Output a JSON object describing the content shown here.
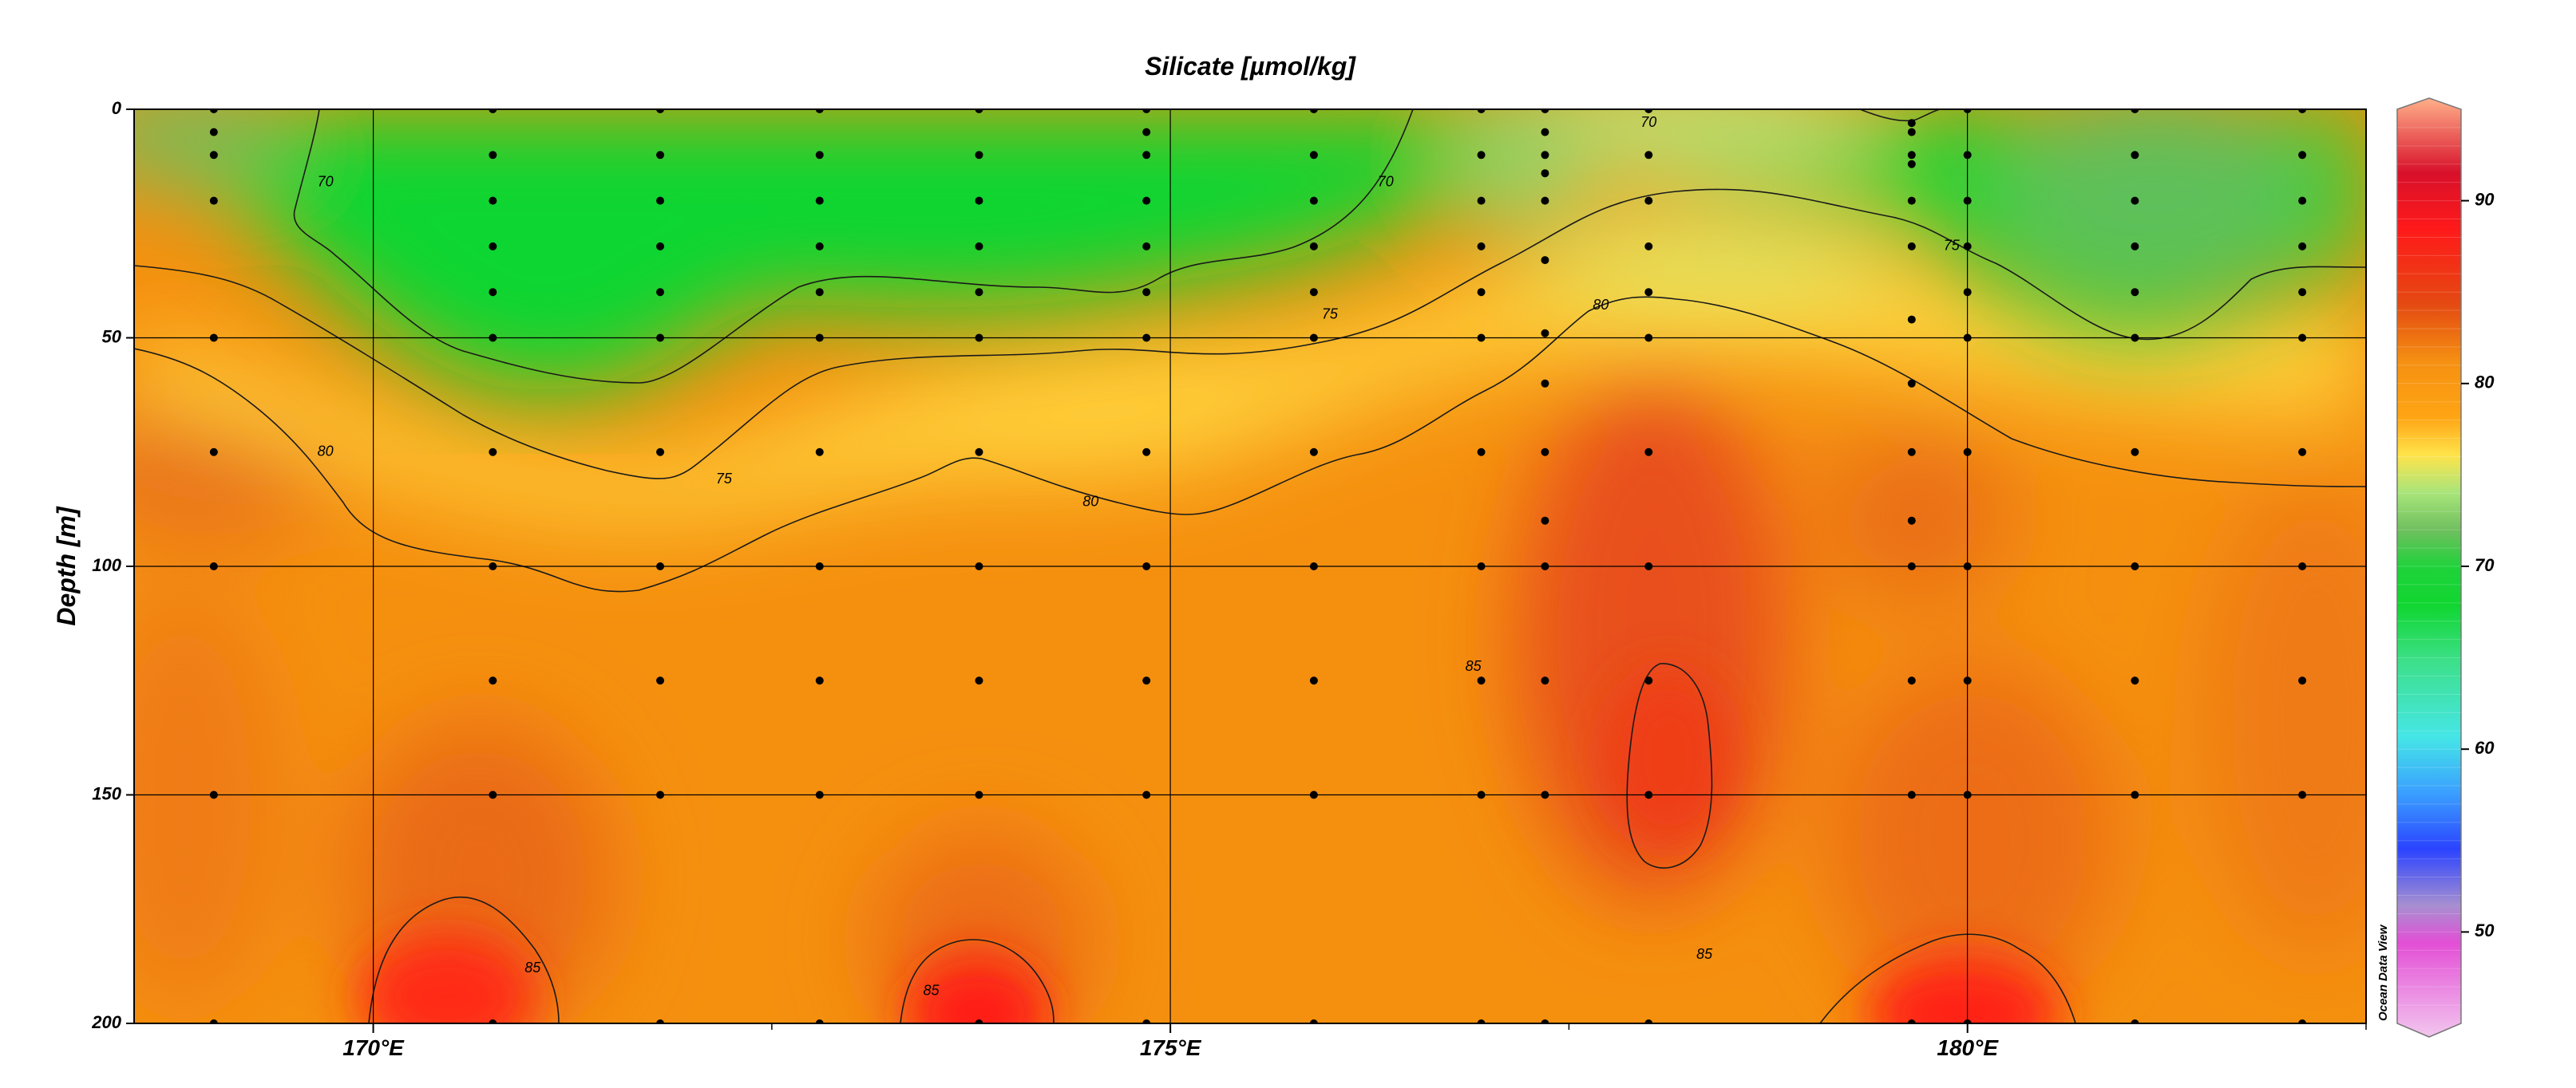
{
  "chart_data": {
    "type": "heatmap",
    "title": "Silicate [µmol/kg]",
    "xlabel": "",
    "ylabel": "Depth [m]",
    "x_ticks": [
      {
        "value": 170,
        "label": "170°E"
      },
      {
        "value": 175,
        "label": "175°E"
      },
      {
        "value": 180,
        "label": "180°E"
      }
    ],
    "y_ticks": [
      {
        "value": 0,
        "label": "0"
      },
      {
        "value": 50,
        "label": "50"
      },
      {
        "value": 100,
        "label": "100"
      },
      {
        "value": 150,
        "label": "150"
      },
      {
        "value": 200,
        "label": "200"
      }
    ],
    "xlim": [
      168.5,
      182.5
    ],
    "ylim": [
      0,
      200
    ],
    "y_inverted": true,
    "grid": true,
    "colorbar": {
      "range": [
        45,
        95
      ],
      "ticks": [
        {
          "value": 50,
          "label": "50"
        },
        {
          "value": 60,
          "label": "60"
        },
        {
          "value": 70,
          "label": "70"
        },
        {
          "value": 80,
          "label": "80"
        },
        {
          "value": 90,
          "label": "90"
        }
      ],
      "stops": [
        {
          "value": 45,
          "color": "#f2c6ee"
        },
        {
          "value": 50,
          "color": "#e34fd6"
        },
        {
          "value": 52,
          "color": "#a78fd0"
        },
        {
          "value": 55,
          "color": "#2b44ff"
        },
        {
          "value": 58,
          "color": "#3aa0ff"
        },
        {
          "value": 61,
          "color": "#45e6e6"
        },
        {
          "value": 65,
          "color": "#3de08a"
        },
        {
          "value": 68,
          "color": "#10d630"
        },
        {
          "value": 70,
          "color": "#1fd23a"
        },
        {
          "value": 72,
          "color": "#6fbf5f"
        },
        {
          "value": 74,
          "color": "#a9e57a"
        },
        {
          "value": 76,
          "color": "#ffe34a"
        },
        {
          "value": 78,
          "color": "#ffa514"
        },
        {
          "value": 81,
          "color": "#f59012"
        },
        {
          "value": 84,
          "color": "#e44a12"
        },
        {
          "value": 88,
          "color": "#ff1a1a"
        },
        {
          "value": 91,
          "color": "#d8102a"
        },
        {
          "value": 95,
          "color": "#ffb08a"
        }
      ]
    },
    "contour_levels": [
      70,
      75,
      80,
      85
    ],
    "contour_labels": [
      {
        "text": "70",
        "lon": 169.7,
        "depth": 16
      },
      {
        "text": "70",
        "lon": 176.35,
        "depth": 16
      },
      {
        "text": "70",
        "lon": 178.0,
        "depth": 3
      },
      {
        "text": "75",
        "lon": 176.0,
        "depth": 45
      },
      {
        "text": "75",
        "lon": 179.9,
        "depth": 30
      },
      {
        "text": "75",
        "lon": 172.2,
        "depth": 81
      },
      {
        "text": "80",
        "lon": 169.7,
        "depth": 75
      },
      {
        "text": "80",
        "lon": 174.5,
        "depth": 86
      },
      {
        "text": "80",
        "lon": 177.7,
        "depth": 43
      },
      {
        "text": "85",
        "lon": 176.9,
        "depth": 122
      },
      {
        "text": "85",
        "lon": 171.0,
        "depth": 188
      },
      {
        "text": "85",
        "lon": 173.5,
        "depth": 193
      },
      {
        "text": "85",
        "lon": 178.35,
        "depth": 185
      }
    ],
    "stations": [
      {
        "lon": 169.0,
        "depths": [
          0,
          5,
          10,
          20,
          50,
          75,
          100,
          150,
          200
        ]
      },
      {
        "lon": 170.75,
        "depths": [
          0,
          10,
          20,
          30,
          40,
          50,
          75,
          100,
          125,
          150,
          200
        ]
      },
      {
        "lon": 171.8,
        "depths": [
          0,
          10,
          20,
          30,
          40,
          50,
          75,
          100,
          125,
          150,
          200
        ]
      },
      {
        "lon": 172.8,
        "depths": [
          0,
          10,
          20,
          30,
          40,
          50,
          75,
          100,
          125,
          150,
          200
        ]
      },
      {
        "lon": 173.8,
        "depths": [
          0,
          10,
          20,
          30,
          40,
          50,
          75,
          100,
          125,
          150,
          200
        ]
      },
      {
        "lon": 174.85,
        "depths": [
          0,
          5,
          10,
          20,
          30,
          40,
          50,
          75,
          100,
          125,
          150,
          200
        ]
      },
      {
        "lon": 175.9,
        "depths": [
          0,
          10,
          20,
          30,
          40,
          50,
          75,
          100,
          125,
          150,
          200
        ]
      },
      {
        "lon": 176.95,
        "depths": [
          0,
          10,
          20,
          30,
          40,
          50,
          75,
          100,
          125,
          150,
          200
        ]
      },
      {
        "lon": 177.35,
        "depths": [
          0,
          5,
          10,
          14,
          20,
          33,
          49,
          60,
          75,
          90,
          100,
          125,
          150,
          200
        ]
      },
      {
        "lon": 178.0,
        "depths": [
          0,
          10,
          20,
          30,
          40,
          50,
          75,
          100,
          125,
          150,
          200
        ]
      },
      {
        "lon": 179.65,
        "depths": [
          3,
          5,
          10,
          12,
          20,
          30,
          46,
          60,
          75,
          90,
          100,
          125,
          150,
          200
        ]
      },
      {
        "lon": 180.0,
        "depths": [
          0,
          10,
          20,
          30,
          40,
          50,
          75,
          100,
          125,
          150,
          200
        ]
      },
      {
        "lon": 181.05,
        "depths": [
          0,
          10,
          20,
          30,
          40,
          50,
          75,
          100,
          125,
          150,
          200
        ]
      },
      {
        "lon": 182.1,
        "depths": [
          0,
          10,
          20,
          30,
          40,
          50,
          75,
          100,
          125,
          150,
          200
        ]
      }
    ],
    "watermark": "Ocean Data View"
  }
}
